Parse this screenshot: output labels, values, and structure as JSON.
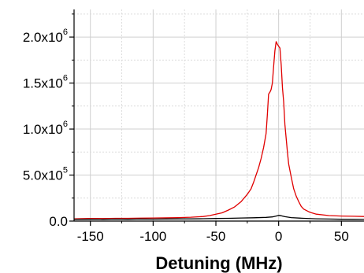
{
  "chart_data": {
    "type": "line",
    "title": "",
    "xlabel": "Detuning (MHz)",
    "ylabel": "",
    "xlim": [
      -163,
      68
    ],
    "ylim": [
      0,
      2300000
    ],
    "grid": true,
    "x_ticks": [
      {
        "value": -150,
        "label": "-150"
      },
      {
        "value": -100,
        "label": "-100"
      },
      {
        "value": -50,
        "label": "-50"
      },
      {
        "value": 0,
        "label": "0"
      },
      {
        "value": 50,
        "label": "50"
      }
    ],
    "y_ticks": [
      {
        "value": 0,
        "base": "0.0",
        "exp": ""
      },
      {
        "value": 500000,
        "base": "5.0x10",
        "exp": "5"
      },
      {
        "value": 1000000,
        "base": "1.0x10",
        "exp": "6"
      },
      {
        "value": 1500000,
        "base": "1.5x10",
        "exp": "6"
      },
      {
        "value": 2000000,
        "base": "2.0x10",
        "exp": "6"
      }
    ],
    "series": [
      {
        "color": "#e00000",
        "points": [
          [
            -163,
            25000
          ],
          [
            -150,
            28000
          ],
          [
            -140,
            27000
          ],
          [
            -130,
            30000
          ],
          [
            -120,
            30000
          ],
          [
            -110,
            32000
          ],
          [
            -100,
            33000
          ],
          [
            -90,
            35000
          ],
          [
            -80,
            38000
          ],
          [
            -70,
            42000
          ],
          [
            -60,
            50000
          ],
          [
            -55,
            60000
          ],
          [
            -50,
            75000
          ],
          [
            -45,
            90000
          ],
          [
            -40,
            120000
          ],
          [
            -35,
            155000
          ],
          [
            -30,
            210000
          ],
          [
            -25,
            290000
          ],
          [
            -22,
            350000
          ],
          [
            -20,
            420000
          ],
          [
            -18,
            500000
          ],
          [
            -16,
            580000
          ],
          [
            -14,
            680000
          ],
          [
            -12,
            800000
          ],
          [
            -10,
            950000
          ],
          [
            -9,
            1150000
          ],
          [
            -8,
            1380000
          ],
          [
            -7,
            1400000
          ],
          [
            -6,
            1430000
          ],
          [
            -5,
            1500000
          ],
          [
            -4,
            1680000
          ],
          [
            -3,
            1850000
          ],
          [
            -2,
            1950000
          ],
          [
            -1,
            1920000
          ],
          [
            0,
            1900000
          ],
          [
            1,
            1880000
          ],
          [
            2,
            1700000
          ],
          [
            3,
            1450000
          ],
          [
            4,
            1300000
          ],
          [
            5,
            1050000
          ],
          [
            6,
            900000
          ],
          [
            7,
            750000
          ],
          [
            8,
            620000
          ],
          [
            10,
            480000
          ],
          [
            12,
            350000
          ],
          [
            14,
            270000
          ],
          [
            16,
            210000
          ],
          [
            18,
            160000
          ],
          [
            20,
            130000
          ],
          [
            25,
            95000
          ],
          [
            30,
            75000
          ],
          [
            40,
            60000
          ],
          [
            50,
            55000
          ],
          [
            60,
            52000
          ],
          [
            68,
            50000
          ]
        ]
      },
      {
        "color": "#000000",
        "points": [
          [
            -163,
            18000
          ],
          [
            -150,
            20000
          ],
          [
            -140,
            19000
          ],
          [
            -130,
            21000
          ],
          [
            -120,
            20000
          ],
          [
            -110,
            22000
          ],
          [
            -100,
            21000
          ],
          [
            -90,
            23000
          ],
          [
            -80,
            24000
          ],
          [
            -70,
            24000
          ],
          [
            -60,
            26000
          ],
          [
            -50,
            28000
          ],
          [
            -40,
            30000
          ],
          [
            -30,
            33000
          ],
          [
            -20,
            36000
          ],
          [
            -10,
            40000
          ],
          [
            -5,
            45000
          ],
          [
            -2,
            55000
          ],
          [
            0,
            62000
          ],
          [
            2,
            58000
          ],
          [
            5,
            48000
          ],
          [
            10,
            38000
          ],
          [
            20,
            30000
          ],
          [
            30,
            25000
          ],
          [
            40,
            22000
          ],
          [
            50,
            20000
          ],
          [
            60,
            19000
          ],
          [
            68,
            18000
          ]
        ]
      }
    ]
  }
}
